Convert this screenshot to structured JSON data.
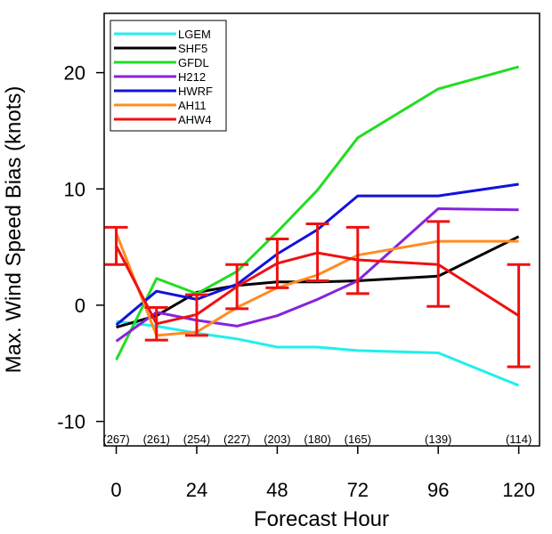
{
  "chart_data": {
    "type": "line",
    "xlabel": "Forecast Hour",
    "ylabel": "Max. Wind Speed Bias (knots)",
    "xlim": [
      -3.6,
      126.2
    ],
    "ylim": [
      -12.1,
      25.1
    ],
    "x_ticks": [
      0,
      24,
      48,
      72,
      96,
      120
    ],
    "y_ticks": [
      -10,
      0,
      10,
      20
    ],
    "x_tick_labels": [
      "0",
      "24",
      "48",
      "72",
      "96",
      "120"
    ],
    "y_tick_labels": [
      "-10",
      "0",
      "10",
      "20"
    ],
    "grid": false,
    "legend": "top-left",
    "sample_counts": [
      {
        "x": 0,
        "label": "(267)"
      },
      {
        "x": 12,
        "label": "(261)"
      },
      {
        "x": 24,
        "label": "(254)"
      },
      {
        "x": 36,
        "label": "(227)"
      },
      {
        "x": 48,
        "label": "(203)"
      },
      {
        "x": 60,
        "label": "(180)"
      },
      {
        "x": 72,
        "label": "(165)"
      },
      {
        "x": 96,
        "label": "(139)"
      },
      {
        "x": 120,
        "label": "(114)"
      }
    ],
    "series": [
      {
        "name": "LGEM",
        "color": "#22eeee",
        "x": [
          0,
          12,
          24,
          36,
          48,
          60,
          72,
          96,
          120
        ],
        "y": [
          -1.4,
          -1.8,
          -2.4,
          -2.9,
          -3.6,
          -3.6,
          -3.9,
          -4.1,
          -6.9
        ]
      },
      {
        "name": "SHF5",
        "color": "#000000",
        "x": [
          0,
          12,
          24,
          36,
          48,
          60,
          72,
          96,
          120
        ],
        "y": [
          -1.9,
          -0.9,
          1.1,
          1.7,
          2.0,
          2.0,
          2.1,
          2.5,
          5.9
        ]
      },
      {
        "name": "GFDL",
        "color": "#22dd22",
        "x": [
          0,
          12,
          24,
          36,
          48,
          60,
          72,
          96,
          120
        ],
        "y": [
          -4.7,
          2.3,
          1.0,
          2.9,
          6.3,
          9.9,
          14.4,
          18.6,
          20.5
        ]
      },
      {
        "name": "H212",
        "color": "#8822dd",
        "x": [
          0,
          12,
          24,
          36,
          48,
          60,
          72,
          96,
          120
        ],
        "y": [
          -3.1,
          -0.6,
          -1.3,
          -1.8,
          -0.9,
          0.5,
          2.1,
          8.3,
          8.2
        ]
      },
      {
        "name": "HWRF",
        "color": "#1111dd",
        "x": [
          0,
          12,
          24,
          36,
          48,
          60,
          72,
          96,
          120
        ],
        "y": [
          -1.7,
          1.2,
          0.5,
          1.8,
          4.4,
          6.5,
          9.4,
          9.4,
          10.4
        ]
      },
      {
        "name": "AH11",
        "color": "#ff8c22",
        "x": [
          0,
          12,
          24,
          36,
          48,
          60,
          72,
          96,
          120
        ],
        "y": [
          6.2,
          -2.6,
          -2.3,
          -0.2,
          1.5,
          2.6,
          4.3,
          5.5,
          5.5
        ]
      },
      {
        "name": "AHW4",
        "color": "#ee1111",
        "x": [
          0,
          12,
          24,
          36,
          48,
          60,
          72,
          96,
          120
        ],
        "y": [
          5.1,
          -1.6,
          -0.8,
          1.6,
          3.6,
          4.5,
          3.9,
          3.5,
          -0.9
        ]
      }
    ],
    "error_bars": {
      "series": "AHW4",
      "color": "#ee1111",
      "x": [
        0,
        12,
        24,
        36,
        48,
        60,
        72,
        96,
        120
      ],
      "low": [
        3.5,
        -3.0,
        -2.6,
        -0.3,
        1.5,
        2.1,
        1.0,
        -0.1,
        -5.3
      ],
      "high": [
        6.7,
        -0.2,
        0.9,
        3.5,
        5.7,
        7.0,
        6.7,
        7.2,
        3.5
      ]
    }
  }
}
